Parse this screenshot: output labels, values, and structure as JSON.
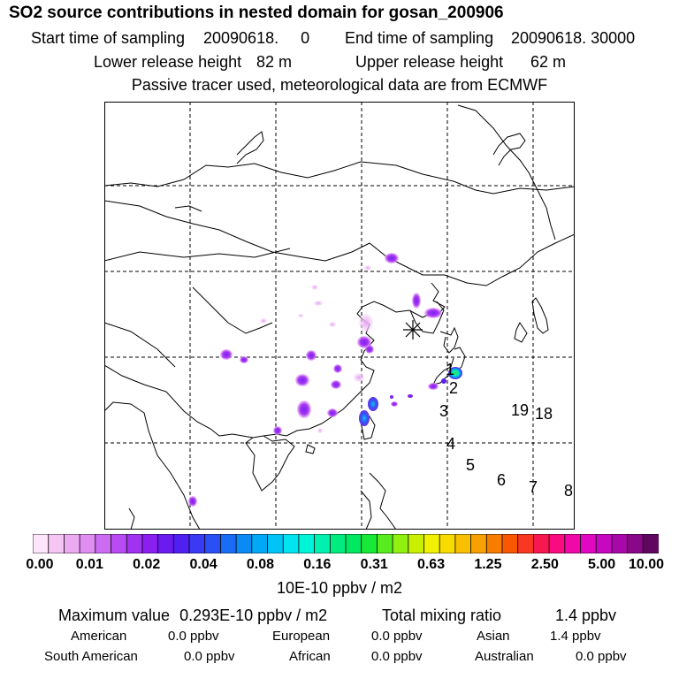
{
  "title": "SO2 source contributions in nested domain for gosan_200906",
  "sampling": {
    "start_label": "Start time of sampling",
    "start_value": "20090618.     0",
    "end_label": "End time of sampling",
    "end_value": "20090618. 30000"
  },
  "release": {
    "lower_label": "Lower release height",
    "lower_value": "82 m",
    "upper_label": "Upper release height",
    "upper_value": "62 m"
  },
  "note": "Passive tracer used, meteorological data are from ECMWF",
  "trajectory_labels": [
    "1",
    "2",
    "3",
    "4",
    "5",
    "6",
    "7",
    "8",
    "19",
    "18"
  ],
  "colorbar": {
    "ticks": [
      "0.00",
      "0.01",
      "0.02",
      "0.04",
      "0.08",
      "0.16",
      "0.31",
      "0.63",
      "1.25",
      "2.50",
      "5.00",
      "10.00"
    ],
    "colors": [
      "#fde6fb",
      "#f5c6f3",
      "#ecaaf0",
      "#e08ef2",
      "#cc6cf2",
      "#b84cf2",
      "#a033f0",
      "#8a1ff0",
      "#6a1cf0",
      "#5020f0",
      "#3a3af2",
      "#2a50f5",
      "#1a6cf5",
      "#0a8af5",
      "#00a8f5",
      "#00c4f5",
      "#00e4f0",
      "#00f5d8",
      "#00f0b0",
      "#00ec80",
      "#00e860",
      "#18e838",
      "#58ec20",
      "#90f010",
      "#c8f000",
      "#f0f000",
      "#f8dc00",
      "#f8c000",
      "#f8a000",
      "#f87c00",
      "#f85800",
      "#f83820",
      "#f81850",
      "#f80c80",
      "#f008a8",
      "#e008c0",
      "#c808c0",
      "#a808a8",
      "#880888",
      "#600860"
    ],
    "unit": "10E-10 ppbv / m2"
  },
  "summary": {
    "max_label": "Maximum value",
    "max_value": "0.293E-10 ppbv / m2",
    "total_label": "Total mixing ratio",
    "total_value": "1.4 ppbv"
  },
  "sources": [
    {
      "name": "American",
      "value": "0.0 ppbv"
    },
    {
      "name": "European",
      "value": "0.0 ppbv"
    },
    {
      "name": "Asian",
      "value": "1.4 ppbv"
    },
    {
      "name": "South American",
      "value": "0.0 ppbv"
    },
    {
      "name": "African",
      "value": "0.0 ppbv"
    },
    {
      "name": "Australian",
      "value": "0.0 ppbv"
    }
  ]
}
